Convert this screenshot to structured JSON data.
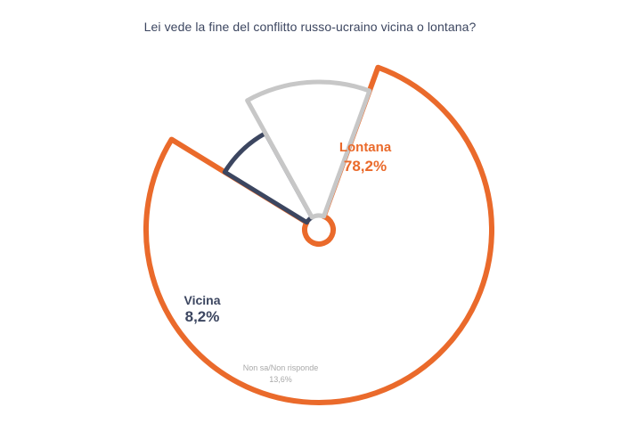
{
  "chart_data": {
    "type": "pie",
    "title": "Lei vede la fine del conflitto russo-ucraino vicina o lontana?",
    "series": [
      {
        "name": "Lontana",
        "value": 78.2,
        "value_label": "78,2%",
        "color": "#ea6a2b"
      },
      {
        "name": "Vicina",
        "value": 8.2,
        "value_label": "8,2%",
        "color": "#3c4660"
      },
      {
        "name": "Non sa/Non risponde",
        "value": 13.6,
        "value_label": "13,6%",
        "color": "#c7c7c7"
      }
    ]
  }
}
